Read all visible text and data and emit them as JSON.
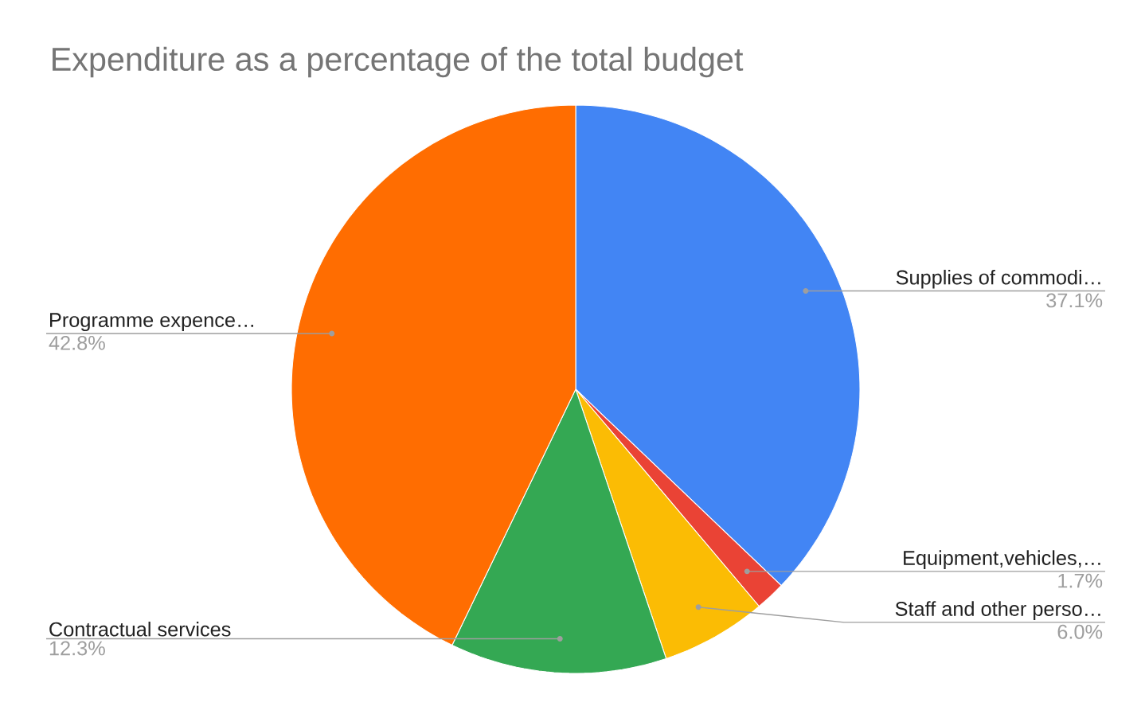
{
  "chart_data": {
    "type": "pie",
    "title": "Expenditure as a percentage of the total budget",
    "categories": [
      "Supplies of commodi…",
      "Equipment,vehicles,…",
      "Staff and other perso…",
      "Contractual services",
      "Programme expence…"
    ],
    "values": [
      37.1,
      1.7,
      6.0,
      12.3,
      42.8
    ],
    "value_labels": [
      "37.1%",
      "1.7%",
      "6.0%",
      "12.3%",
      "42.8%"
    ],
    "colors": [
      "#4285f4",
      "#ea4335",
      "#fbbc04",
      "#34a853",
      "#ff6d01"
    ]
  }
}
